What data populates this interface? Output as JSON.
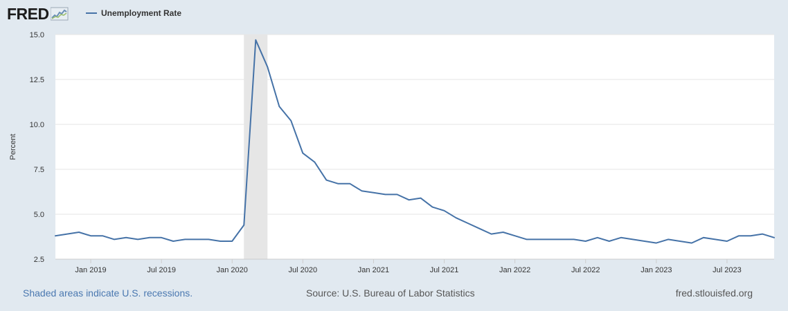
{
  "header": {
    "logo_text": "FRED",
    "legend_label": "Unemployment Rate"
  },
  "footer": {
    "recession_note": "Shaded areas indicate U.S. recessions.",
    "source": "Source: U.S. Bureau of Labor Statistics",
    "site": "fred.stlouisfed.org"
  },
  "colors": {
    "series": "#4572a7",
    "background": "#e1e9f0",
    "plot": "#ffffff",
    "recession": "#e6e6e6",
    "link": "#4a78b0"
  },
  "chart_data": {
    "type": "line",
    "title": "",
    "xlabel": "",
    "ylabel": "Percent",
    "ylim": [
      2.5,
      15.0
    ],
    "yticks": [
      {
        "value": 2.5,
        "label": "2.5"
      },
      {
        "value": 5.0,
        "label": "5.0"
      },
      {
        "value": 7.5,
        "label": "7.5"
      },
      {
        "value": 10.0,
        "label": "10.0"
      },
      {
        "value": 12.5,
        "label": "12.5"
      },
      {
        "value": 15.0,
        "label": "15.0"
      }
    ],
    "x_start": "2018-10",
    "xticks": [
      {
        "index": 3,
        "label": "Jan 2019"
      },
      {
        "index": 9,
        "label": "Jul 2019"
      },
      {
        "index": 15,
        "label": "Jan 2020"
      },
      {
        "index": 21,
        "label": "Jul 2020"
      },
      {
        "index": 27,
        "label": "Jan 2021"
      },
      {
        "index": 33,
        "label": "Jul 2021"
      },
      {
        "index": 39,
        "label": "Jan 2022"
      },
      {
        "index": 45,
        "label": "Jul 2022"
      },
      {
        "index": 51,
        "label": "Jan 2023"
      },
      {
        "index": 57,
        "label": "Jul 2023"
      }
    ],
    "recessions": [
      {
        "start": "Feb 2020",
        "end": "Apr 2020",
        "start_index": 16,
        "end_index": 18
      }
    ],
    "series": [
      {
        "name": "Unemployment Rate",
        "values": [
          3.8,
          3.9,
          4.0,
          3.8,
          3.8,
          3.6,
          3.7,
          3.6,
          3.7,
          3.7,
          3.5,
          3.6,
          3.6,
          3.6,
          3.5,
          3.5,
          4.4,
          14.7,
          13.2,
          11.0,
          10.2,
          8.4,
          7.9,
          6.9,
          6.7,
          6.7,
          6.3,
          6.2,
          6.1,
          6.1,
          5.8,
          5.9,
          5.4,
          5.2,
          4.8,
          4.5,
          4.2,
          3.9,
          4.0,
          3.8,
          3.6,
          3.6,
          3.6,
          3.6,
          3.6,
          3.5,
          3.7,
          3.5,
          3.7,
          3.6,
          3.5,
          3.4,
          3.6,
          3.5,
          3.4,
          3.7,
          3.6,
          3.5,
          3.8,
          3.8,
          3.9,
          3.7
        ]
      }
    ]
  }
}
